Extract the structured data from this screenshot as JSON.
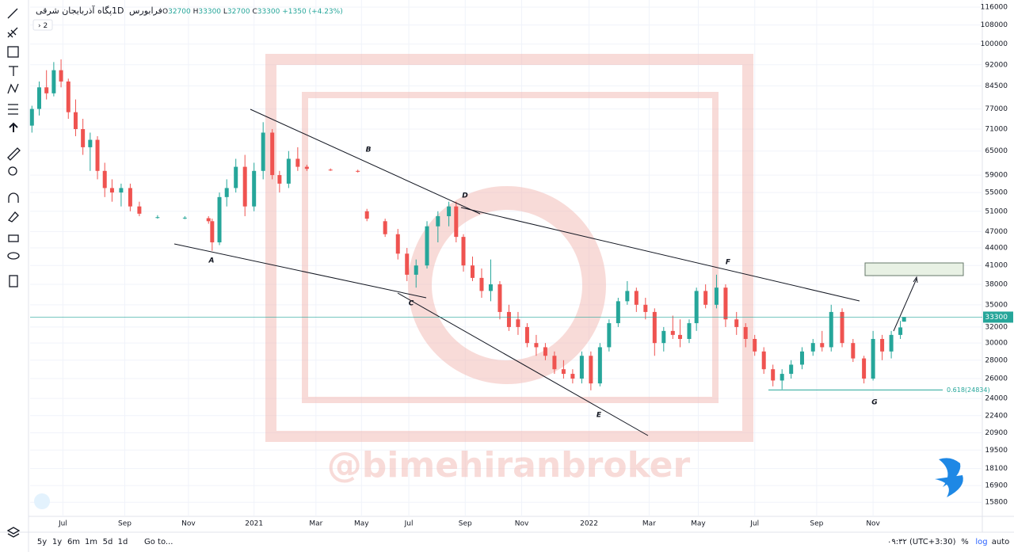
{
  "header": {
    "symbol": "پگاه آذربایجان شرقی",
    "interval": "1D",
    "exchange": "فرابورس",
    "o_prefix": "O",
    "open": 32700,
    "h_prefix": "H",
    "high": 33300,
    "l_prefix": "L",
    "low": 32700,
    "c_prefix": "C",
    "close": 33300,
    "change": "+1350 (+4.23%)",
    "collapse": "2"
  },
  "bottom_bar": {
    "ranges": [
      "5y",
      "1y",
      "6m",
      "1m",
      "5d",
      "1d"
    ],
    "goto": "Go to...",
    "time": "۰۹:۳۲ (UTC+3:30)",
    "percent": "%",
    "log": "log",
    "auto": "auto"
  },
  "watermark": "@bimehiranbroker",
  "labels": [
    "A",
    "B",
    "C",
    "D",
    "E",
    "F",
    "G"
  ],
  "chart_data": {
    "type": "candlestick",
    "log_scale": true,
    "up_color": "#26a69a",
    "down_color": "#ef5350",
    "ylim": [
      14930,
      119400
    ],
    "yticks": [
      116000,
      108000,
      100000,
      92000,
      84500,
      77000,
      71000,
      65000,
      59000,
      55000,
      51000,
      47000,
      44000,
      41000,
      38000,
      35000,
      32000,
      30000,
      28000,
      26000,
      24000,
      22400,
      20900,
      19500,
      18100,
      16900,
      15800
    ],
    "xlim": [
      0,
      523
    ],
    "xticks": [
      {
        "value": 18,
        "label": "Jul"
      },
      {
        "value": 52,
        "label": "Sep"
      },
      {
        "value": 87,
        "label": "Nov"
      },
      {
        "value": 123,
        "label": "2021"
      },
      {
        "value": 157,
        "label": "Mar"
      },
      {
        "value": 182,
        "label": "May"
      },
      {
        "value": 208,
        "label": "Jul"
      },
      {
        "value": 239,
        "label": "Sep"
      },
      {
        "value": 270,
        "label": "Nov"
      },
      {
        "value": 307,
        "label": "2022"
      },
      {
        "value": 340,
        "label": "Mar"
      },
      {
        "value": 367,
        "label": "May"
      },
      {
        "value": 398,
        "label": "Jul"
      },
      {
        "value": 432,
        "label": "Sep"
      },
      {
        "value": 463,
        "label": "Nov"
      }
    ],
    "last_price": 33300,
    "last_price_color": "#26a69a",
    "fib": {
      "level": 24834,
      "label": "0.618(24834)"
    },
    "x": [
      1,
      5,
      9,
      13,
      17,
      21,
      25,
      29,
      33,
      37,
      41,
      45,
      50,
      55,
      60,
      70,
      85,
      98,
      100,
      104,
      108,
      113,
      118,
      123,
      128,
      133,
      137,
      142,
      147,
      152,
      165,
      180,
      185,
      195,
      202,
      207,
      212,
      218,
      224,
      230,
      234,
      238,
      243,
      248,
      253,
      258,
      263,
      268,
      273,
      278,
      283,
      288,
      293,
      298,
      303,
      308,
      313,
      318,
      323,
      328,
      333,
      338,
      343,
      348,
      353,
      357,
      362,
      366,
      371,
      377,
      382,
      388,
      393,
      398,
      403,
      408,
      413,
      418,
      424,
      430,
      435,
      440,
      446,
      452,
      458,
      463,
      468,
      473,
      478,
      480
    ],
    "open": [
      72000,
      77000,
      84000,
      82000,
      90000,
      86000,
      76000,
      71000,
      66000,
      68000,
      60000,
      56000,
      55000,
      56000,
      52000,
      49800,
      49700,
      49600,
      49000,
      45000,
      54000,
      56000,
      61000,
      52000,
      60000,
      70000,
      59000,
      57000,
      63000,
      61000,
      60300,
      60000,
      51000,
      49000,
      46500,
      43000,
      39500,
      41000,
      48000,
      50000,
      52000,
      46000,
      41000,
      39000,
      37000,
      38000,
      34000,
      33000,
      32000,
      30000,
      29500,
      28500,
      27000,
      26500,
      26000,
      28500,
      25500,
      29500,
      32500,
      35500,
      37000,
      35000,
      34000,
      30000,
      31500,
      31000,
      30500,
      32500,
      37000,
      35000,
      37500,
      33000,
      32000,
      30500,
      29000,
      27000,
      25800,
      26500,
      27500,
      29000,
      30000,
      29500,
      34000,
      30000,
      28200,
      26000,
      30500,
      29000,
      31000,
      32700
    ],
    "high": [
      78000,
      86000,
      90000,
      93000,
      94000,
      87000,
      80000,
      74000,
      70000,
      69000,
      62000,
      58000,
      57000,
      57000,
      53000,
      50200,
      50000,
      50000,
      49500,
      55000,
      58000,
      63000,
      64000,
      62000,
      73000,
      71000,
      60000,
      65000,
      66000,
      61500,
      60600,
      60300,
      51500,
      49500,
      47500,
      44000,
      42000,
      49000,
      51000,
      53000,
      53000,
      46500,
      42500,
      40500,
      42000,
      38500,
      35000,
      34000,
      32500,
      31000,
      30000,
      29000,
      28000,
      27000,
      29000,
      29000,
      30000,
      33000,
      36000,
      38500,
      37500,
      36000,
      34500,
      32000,
      33500,
      33000,
      33000,
      37500,
      38000,
      39500,
      38000,
      34000,
      32500,
      31000,
      29500,
      27500,
      27000,
      28000,
      29500,
      30500,
      31500,
      35000,
      34500,
      30500,
      28500,
      31500,
      31000,
      31500,
      32800,
      33300
    ],
    "low": [
      70000,
      75000,
      80000,
      81000,
      84000,
      74000,
      69000,
      64000,
      60000,
      58000,
      54000,
      53000,
      52000,
      51000,
      50000,
      49500,
      49400,
      48500,
      43500,
      44500,
      52000,
      55000,
      50000,
      51000,
      58000,
      58000,
      55000,
      56000,
      60000,
      60000,
      60000,
      59600,
      49000,
      46000,
      42000,
      38500,
      37500,
      40500,
      45000,
      48000,
      45000,
      40000,
      38500,
      36000,
      35500,
      33000,
      31500,
      31000,
      29500,
      28500,
      28000,
      26500,
      26000,
      25500,
      25500,
      24800,
      25200,
      29000,
      32000,
      35000,
      34000,
      33000,
      28500,
      29000,
      30500,
      29500,
      30000,
      31500,
      34500,
      34500,
      32000,
      31000,
      29500,
      28500,
      26500,
      25200,
      24900,
      26000,
      27000,
      28500,
      29000,
      29000,
      29500,
      27800,
      25500,
      25800,
      28000,
      28200,
      30500,
      32700
    ],
    "close": [
      77000,
      84000,
      82000,
      90000,
      86000,
      76000,
      71000,
      66000,
      68000,
      60000,
      56000,
      55000,
      56000,
      52000,
      50500,
      49800,
      49700,
      49000,
      45000,
      54000,
      56000,
      61000,
      52000,
      60000,
      70000,
      59000,
      57000,
      63000,
      61000,
      60500,
      60200,
      59800,
      49500,
      46500,
      43000,
      39500,
      41000,
      48000,
      50000,
      52000,
      46000,
      41000,
      39000,
      37000,
      38000,
      34000,
      32000,
      32000,
      30000,
      29500,
      28500,
      27000,
      26500,
      26000,
      28500,
      25500,
      29500,
      32500,
      35500,
      37000,
      35000,
      34000,
      30000,
      31500,
      31000,
      30500,
      32500,
      37000,
      35000,
      37500,
      33000,
      32000,
      30500,
      29000,
      27000,
      25800,
      26500,
      27500,
      29000,
      30000,
      29500,
      34000,
      30000,
      28200,
      26000,
      30500,
      29000,
      31000,
      31950,
      33300
    ]
  }
}
